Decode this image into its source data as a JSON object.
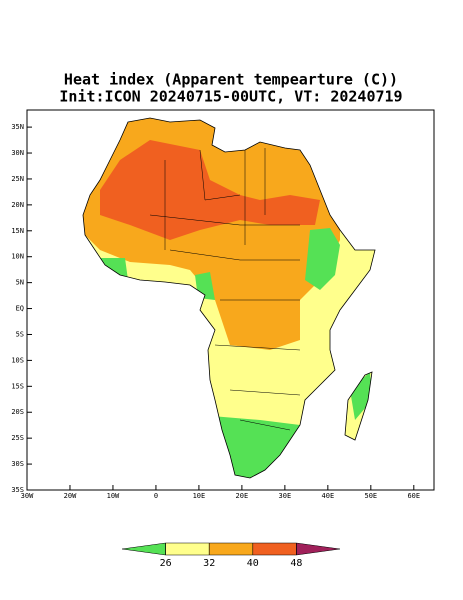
{
  "map": {
    "title": "Heat index (Apparent tempearture (C))",
    "subtitle": "Init:ICON 20240715-00UTC, VT: 20240719",
    "xlim": [
      -30,
      64.7
    ],
    "ylim": [
      -35,
      38.3
    ],
    "xticks": [
      {
        "value": -30,
        "label": "30W"
      },
      {
        "value": -20,
        "label": "20W"
      },
      {
        "value": -10,
        "label": "10W"
      },
      0,
      {
        "value": 10,
        "label": "10E"
      },
      {
        "value": 20,
        "label": "20E"
      },
      {
        "value": 30,
        "label": "30E"
      },
      {
        "value": 40,
        "label": "40E"
      },
      {
        "value": 50,
        "label": "50E"
      },
      {
        "value": 60,
        "label": "60E"
      }
    ],
    "yticks": [
      {
        "value": 35,
        "label": "35N"
      },
      {
        "value": 30,
        "label": "30N"
      },
      {
        "value": 25,
        "label": "25N"
      },
      {
        "value": 20,
        "label": "20N"
      },
      {
        "value": 15,
        "label": "15N"
      },
      {
        "value": 10,
        "label": "10N"
      },
      {
        "value": 5,
        "label": "5N"
      },
      {
        "value": 0,
        "label": "EQ"
      },
      {
        "value": -5,
        "label": "5S"
      },
      {
        "value": -10,
        "label": "10S"
      },
      {
        "value": -15,
        "label": "15S"
      },
      {
        "value": -20,
        "label": "20S"
      },
      {
        "value": -25,
        "label": "25S"
      },
      {
        "value": -30,
        "label": "30S"
      },
      {
        "value": -35,
        "label": "35S"
      }
    ],
    "colorbar": {
      "levels": [
        26,
        32,
        40,
        48
      ],
      "colors": [
        "#55e155",
        "#ffff8c",
        "#f8a81c",
        "#f06020",
        "#a0205a"
      ]
    }
  }
}
